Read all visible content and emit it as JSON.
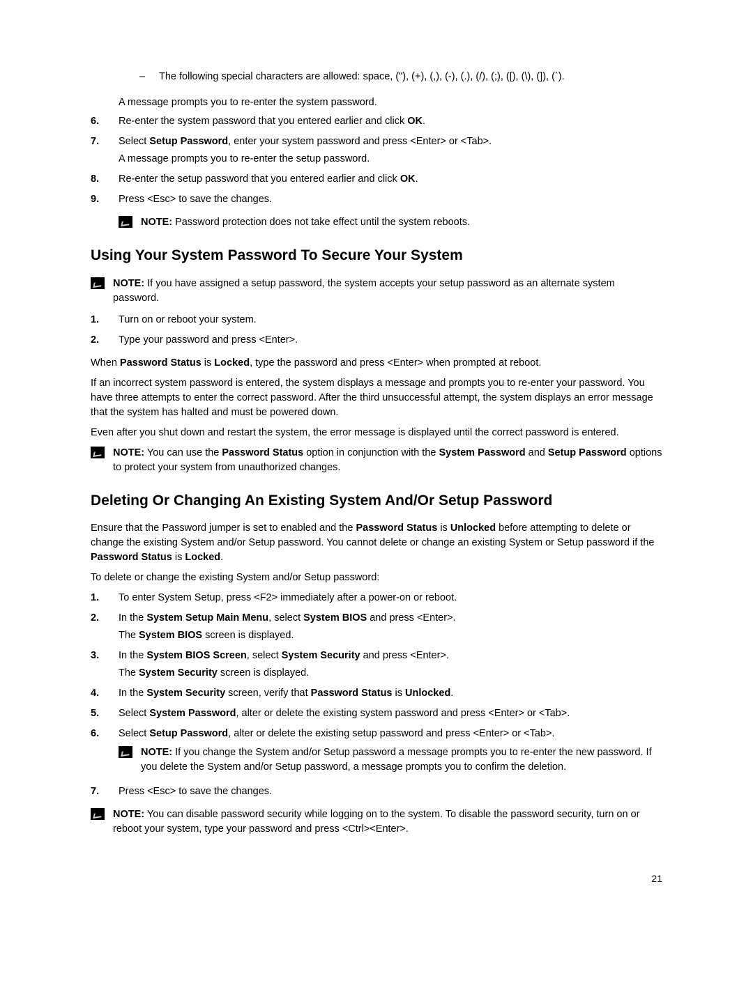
{
  "dash_item": "The following special characters are allowed: space, (\"), (+), (,), (-), (.), (/), (;), ([), (\\), (]), (`).",
  "para_after_dash": "A message prompts you to re-enter the system password.",
  "steps_top": [
    {
      "n": "6.",
      "lines": [
        "Re-enter the system password that you entered earlier and click <b>OK</b>."
      ]
    },
    {
      "n": "7.",
      "lines": [
        "Select <b>Setup Password</b>, enter your system password and press <Enter> or <Tab>.",
        "A message prompts you to re-enter the setup password."
      ]
    },
    {
      "n": "8.",
      "lines": [
        "Re-enter the setup password that you entered earlier and click <b>OK</b>."
      ]
    },
    {
      "n": "9.",
      "lines": [
        "Press <Esc> to save the changes."
      ]
    }
  ],
  "note1": "<b>NOTE:</b> Password protection does not take effect until the system reboots.",
  "h2a": "Using Your System Password To Secure Your System",
  "note2": "<b>NOTE:</b> If you have assigned a setup password, the system accepts your setup password as an alternate system password.",
  "steps_mid": [
    {
      "n": "1.",
      "lines": [
        "Turn on or reboot your system."
      ]
    },
    {
      "n": "2.",
      "lines": [
        "Type your password and press <Enter>."
      ]
    }
  ],
  "para_mid1": "When <b>Password Status</b> is <b>Locked</b>, type the password and press <Enter> when prompted at reboot.",
  "para_mid2": "If an incorrect system password is entered, the system displays a message and prompts you to re-enter your password. You have three attempts to enter the correct password. After the third unsuccessful attempt, the system displays an error message that the system has halted and must be powered down.",
  "para_mid3": "Even after you shut down and restart the system, the error message is displayed until the correct password is entered.",
  "note3": "<b>NOTE:</b> You can use the <b>Password Status</b> option in conjunction with the <b>System Password</b> and <b>Setup Password</b> options to protect your system from unauthorized changes.",
  "h2b": "Deleting Or Changing An Existing System And/Or Setup Password",
  "para_b1": "Ensure that the Password jumper is set to enabled and the <b>Password Status</b> is <b>Unlocked</b> before attempting to delete or change the existing System and/or Setup password. You cannot delete or change an existing System or Setup password if the <b>Password Status</b> is <b>Locked</b>.",
  "para_b2": "To delete or change the existing System and/or Setup password:",
  "steps_bot": [
    {
      "n": "1.",
      "lines": [
        "To enter System Setup, press <F2> immediately after a power-on or reboot."
      ]
    },
    {
      "n": "2.",
      "lines": [
        "In the <b>System Setup Main Menu</b>, select <b>System BIOS</b> and press <Enter>.",
        "The <b>System BIOS</b> screen is displayed."
      ]
    },
    {
      "n": "3.",
      "lines": [
        "In the <b>System BIOS Screen</b>, select <b>System Security</b> and press <Enter>.",
        "The <b>System Security</b> screen is displayed."
      ]
    },
    {
      "n": "4.",
      "lines": [
        "In the <b>System Security</b> screen, verify that <b>Password Status</b> is <b>Unlocked</b>."
      ]
    },
    {
      "n": "5.",
      "lines": [
        "Select <b>System Password</b>, alter or delete the existing system password and press <Enter> or <Tab>."
      ]
    },
    {
      "n": "6.",
      "lines": [
        "Select <b>Setup Password</b>, alter or delete the existing setup password and press <Enter> or <Tab>."
      ],
      "note": "<b>NOTE:</b> If you change the System and/or Setup password a message prompts you to re-enter the new password. If you delete the System and/or Setup password, a message prompts you to confirm the deletion."
    },
    {
      "n": "7.",
      "lines": [
        "Press <Esc> to save the changes."
      ]
    }
  ],
  "note_last": "<b>NOTE:</b> You can disable password security while logging on to the system. To disable the password security, turn on or reboot your system, type your password and press <Ctrl><Enter>.",
  "page_number": "21"
}
